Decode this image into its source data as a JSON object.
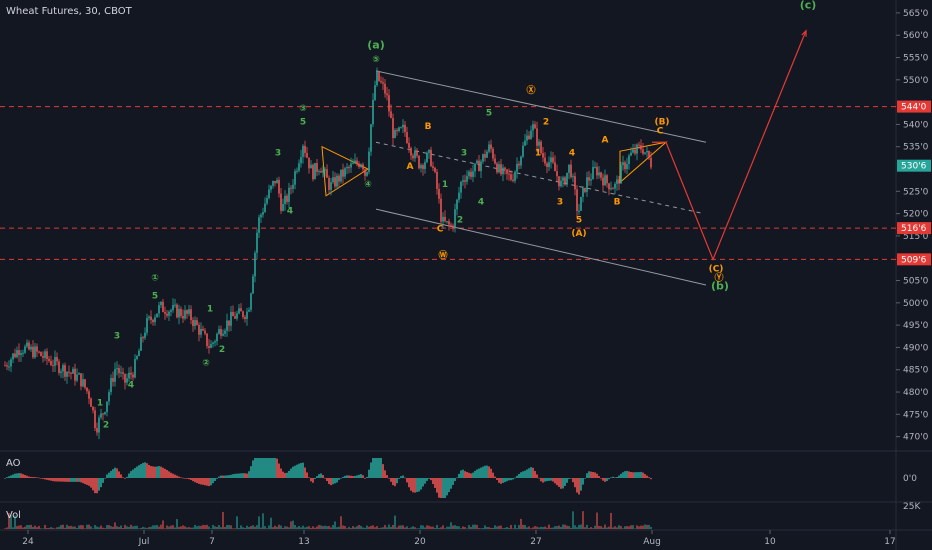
{
  "chart_data": {
    "type": "line",
    "title": "Wheat Futures, 30, CBOT",
    "main_pane": {
      "ylim": [
        467,
        567
      ],
      "y_ticks": [
        {
          "v": 470,
          "label": "470'0"
        },
        {
          "v": 475,
          "label": "475'0"
        },
        {
          "v": 480,
          "label": "480'0"
        },
        {
          "v": 485,
          "label": "485'0"
        },
        {
          "v": 490,
          "label": "490'0"
        },
        {
          "v": 495,
          "label": "495'0"
        },
        {
          "v": 500,
          "label": "500'0"
        },
        {
          "v": 505,
          "label": "505'0"
        },
        {
          "v": 515,
          "label": "515'0"
        },
        {
          "v": 520,
          "label": "520'0"
        },
        {
          "v": 525,
          "label": "525'0"
        },
        {
          "v": 535,
          "label": "535'0"
        },
        {
          "v": 540,
          "label": "540'0"
        },
        {
          "v": 550,
          "label": "550'0"
        },
        {
          "v": 555,
          "label": "555'0"
        },
        {
          "v": 560,
          "label": "560'0"
        },
        {
          "v": 565,
          "label": "565'0"
        }
      ],
      "price_badges": [
        {
          "v": 544,
          "label": "544'0",
          "color": "#e53935"
        },
        {
          "v": 530.75,
          "label": "530'6",
          "color": "#26a69a"
        },
        {
          "v": 516.75,
          "label": "516'6",
          "color": "#e53935"
        },
        {
          "v": 509.75,
          "label": "509'6",
          "color": "#e53935"
        }
      ],
      "hlines": [
        544,
        516.75,
        509.75
      ],
      "price_path": [
        [
          5,
          486
        ],
        [
          20,
          490
        ],
        [
          35,
          489
        ],
        [
          50,
          487
        ],
        [
          65,
          485
        ],
        [
          80,
          483
        ],
        [
          90,
          479
        ],
        [
          96,
          472
        ],
        [
          104,
          476
        ],
        [
          116,
          486
        ],
        [
          124,
          482
        ],
        [
          134,
          485
        ],
        [
          146,
          495
        ],
        [
          160,
          499
        ],
        [
          178,
          498
        ],
        [
          190,
          497
        ],
        [
          202,
          493
        ],
        [
          210,
          490
        ],
        [
          220,
          494
        ],
        [
          234,
          497
        ],
        [
          248,
          498
        ],
        [
          252,
          505
        ],
        [
          258,
          518
        ],
        [
          266,
          523
        ],
        [
          276,
          528
        ],
        [
          282,
          521
        ],
        [
          290,
          525
        ],
        [
          303,
          536
        ],
        [
          312,
          529
        ],
        [
          320,
          531
        ],
        [
          330,
          526
        ],
        [
          348,
          530
        ],
        [
          362,
          532
        ],
        [
          366,
          528
        ],
        [
          371,
          540
        ],
        [
          376,
          551
        ],
        [
          386,
          547
        ],
        [
          394,
          537
        ],
        [
          404,
          539
        ],
        [
          412,
          534
        ],
        [
          420,
          531
        ],
        [
          430,
          533
        ],
        [
          436,
          527
        ],
        [
          442,
          518
        ],
        [
          452,
          517
        ],
        [
          462,
          528
        ],
        [
          476,
          530
        ],
        [
          490,
          535
        ],
        [
          500,
          529
        ],
        [
          512,
          528
        ],
        [
          520,
          533
        ],
        [
          532,
          540
        ],
        [
          542,
          533
        ],
        [
          552,
          531
        ],
        [
          562,
          526
        ],
        [
          570,
          531
        ],
        [
          578,
          520
        ],
        [
          586,
          527
        ],
        [
          596,
          530
        ],
        [
          606,
          527
        ],
        [
          616,
          526
        ],
        [
          622,
          530
        ],
        [
          630,
          533
        ],
        [
          642,
          535
        ],
        [
          652,
          531
        ]
      ],
      "projection": [
        [
          652,
          536
        ],
        [
          666,
          536
        ],
        [
          713,
          509.75
        ],
        [
          806,
          561
        ]
      ],
      "channel_lines": [
        {
          "p1": [
            376,
            552
          ],
          "p2": [
            706,
            536
          ],
          "style": "solid"
        },
        {
          "p1": [
            376,
            536
          ],
          "p2": [
            704,
            520
          ],
          "style": "dashed"
        },
        {
          "p1": [
            376,
            521
          ],
          "p2": [
            706,
            504
          ],
          "style": "solid"
        }
      ],
      "triangles": [
        {
          "points": [
            [
              322,
              535
            ],
            [
              368,
              530
            ],
            [
              326,
              524
            ]
          ]
        },
        {
          "points": [
            [
              620,
              534
            ],
            [
              666,
              536
            ],
            [
              620,
              527
            ]
          ]
        }
      ],
      "wave_labels": [
        {
          "text": "1",
          "x": 100,
          "y": 477,
          "color": "#4caf50"
        },
        {
          "text": "2",
          "x": 106,
          "y": 472,
          "color": "#4caf50"
        },
        {
          "text": "3",
          "x": 117,
          "y": 492,
          "color": "#4caf50"
        },
        {
          "text": "4",
          "x": 131,
          "y": 481,
          "color": "#4caf50"
        },
        {
          "text": "①",
          "x": 155,
          "y": 505,
          "color": "#4caf50",
          "circle": true
        },
        {
          "text": "5",
          "x": 155,
          "y": 501,
          "color": "#4caf50"
        },
        {
          "text": "1",
          "x": 210,
          "y": 498,
          "color": "#4caf50"
        },
        {
          "text": "2",
          "x": 222,
          "y": 489,
          "color": "#4caf50"
        },
        {
          "text": "②",
          "x": 206,
          "y": 486,
          "color": "#4caf50",
          "circle": true
        },
        {
          "text": "3",
          "x": 278,
          "y": 533,
          "color": "#4caf50"
        },
        {
          "text": "4",
          "x": 290,
          "y": 520,
          "color": "#4caf50"
        },
        {
          "text": "③",
          "x": 303,
          "y": 543,
          "color": "#4caf50",
          "circle": true
        },
        {
          "text": "5",
          "x": 303,
          "y": 540,
          "color": "#4caf50"
        },
        {
          "text": "④",
          "x": 368,
          "y": 526,
          "color": "#4caf50",
          "circle": true
        },
        {
          "text": "(a)",
          "x": 376,
          "y": 557,
          "color": "#4caf50",
          "big": true
        },
        {
          "text": "⑤",
          "x": 376,
          "y": 554,
          "color": "#4caf50",
          "circle": true
        },
        {
          "text": "B",
          "x": 428,
          "y": 539,
          "color": "#ff9800"
        },
        {
          "text": "A",
          "x": 410,
          "y": 530,
          "color": "#ff9800"
        },
        {
          "text": "C",
          "x": 440,
          "y": 516,
          "color": "#ff9800"
        },
        {
          "text": "Ⓦ",
          "x": 443,
          "y": 510,
          "color": "#ff9800",
          "circle": true
        },
        {
          "text": "1",
          "x": 445,
          "y": 526,
          "color": "#4caf50"
        },
        {
          "text": "2",
          "x": 460,
          "y": 518,
          "color": "#4caf50"
        },
        {
          "text": "3",
          "x": 464,
          "y": 533,
          "color": "#4caf50"
        },
        {
          "text": "4",
          "x": 481,
          "y": 522,
          "color": "#4caf50"
        },
        {
          "text": "5",
          "x": 489,
          "y": 542,
          "color": "#4caf50"
        },
        {
          "text": "Ⓧ",
          "x": 531,
          "y": 547,
          "color": "#ff9800",
          "circle": true
        },
        {
          "text": "1",
          "x": 538,
          "y": 533,
          "color": "#ff9800"
        },
        {
          "text": "2",
          "x": 546,
          "y": 540,
          "color": "#ff9800"
        },
        {
          "text": "3",
          "x": 560,
          "y": 522,
          "color": "#ff9800"
        },
        {
          "text": "4",
          "x": 572,
          "y": 533,
          "color": "#ff9800"
        },
        {
          "text": "5",
          "x": 579,
          "y": 518,
          "color": "#ff9800"
        },
        {
          "text": "(A)",
          "x": 579,
          "y": 515,
          "color": "#ff9800"
        },
        {
          "text": "A",
          "x": 605,
          "y": 536,
          "color": "#ff9800"
        },
        {
          "text": "B",
          "x": 617,
          "y": 522,
          "color": "#ff9800"
        },
        {
          "text": "(B)",
          "x": 662,
          "y": 540,
          "color": "#ff9800"
        },
        {
          "text": "C",
          "x": 660,
          "y": 538,
          "color": "#ff9800"
        },
        {
          "text": "(C)",
          "x": 716,
          "y": 507,
          "color": "#ff9800"
        },
        {
          "text": "Ⓨ",
          "x": 719,
          "y": 505,
          "color": "#ff9800",
          "circle": true
        },
        {
          "text": "(b)",
          "x": 720,
          "y": 503,
          "color": "#4caf50",
          "big": true
        },
        {
          "text": "(c)",
          "x": 808,
          "y": 566,
          "color": "#4caf50",
          "big": true
        }
      ]
    },
    "x_ticks": [
      {
        "x": 28,
        "label": "24"
      },
      {
        "x": 144,
        "label": "Jul"
      },
      {
        "x": 212,
        "label": "7"
      },
      {
        "x": 304,
        "label": "13"
      },
      {
        "x": 420,
        "label": "20"
      },
      {
        "x": 536,
        "label": "27"
      },
      {
        "x": 652,
        "label": "Aug"
      },
      {
        "x": 770,
        "label": "10"
      },
      {
        "x": 890,
        "label": "17"
      }
    ],
    "ao_pane": {
      "label": "AO",
      "y_tick": "0'0"
    },
    "vol_pane": {
      "label": "Vol",
      "y_tick": "25K"
    },
    "colors": {
      "background": "#131722",
      "up": "#26a69a",
      "down": "#ef5350",
      "ao_up": "#26a69a",
      "ao_down": "#ef5350",
      "projection": "#e53935",
      "channel": "#9598a1",
      "triangle": "#ff9800"
    }
  }
}
